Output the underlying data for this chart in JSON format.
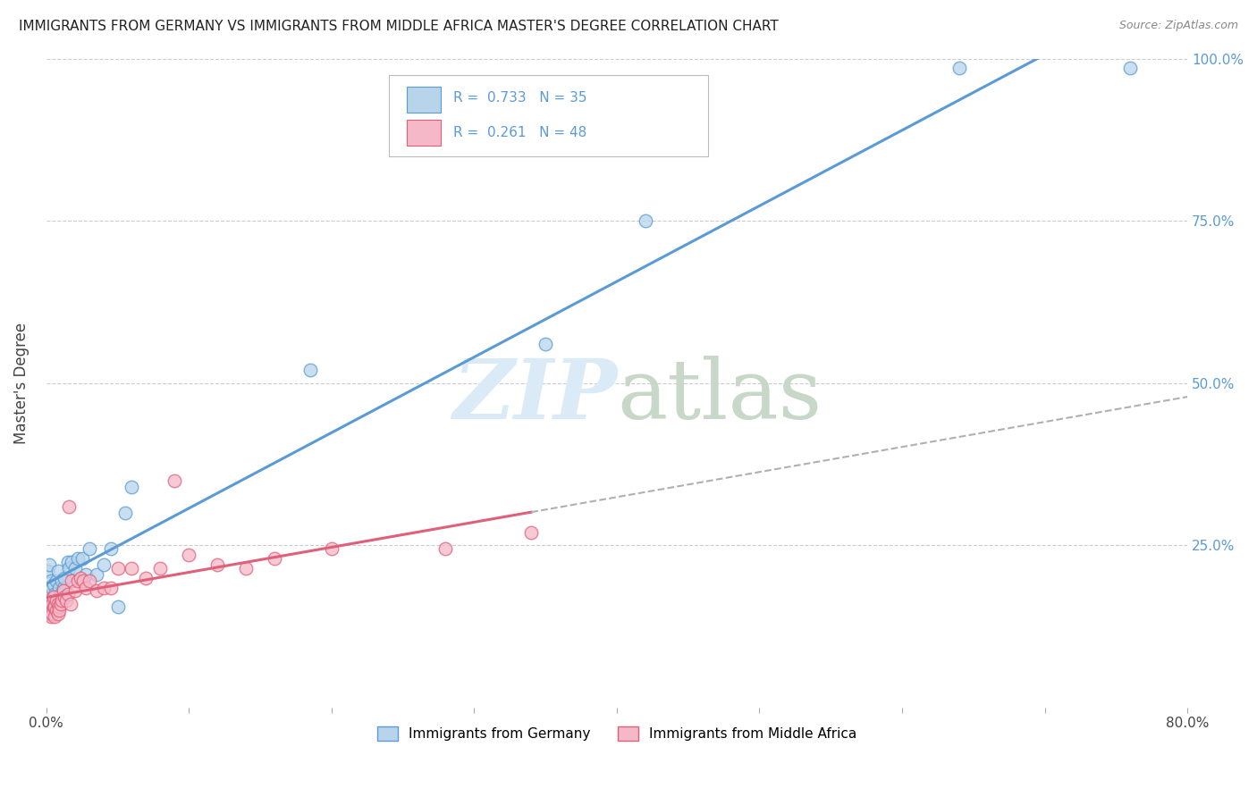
{
  "title": "IMMIGRANTS FROM GERMANY VS IMMIGRANTS FROM MIDDLE AFRICA MASTER'S DEGREE CORRELATION CHART",
  "source": "Source: ZipAtlas.com",
  "ylabel": "Master's Degree",
  "legend_label1": "Immigrants from Germany",
  "legend_label2": "Immigrants from Middle Africa",
  "R1": 0.733,
  "N1": 35,
  "R2": 0.261,
  "N2": 48,
  "xlim": [
    0.0,
    0.8
  ],
  "ylim": [
    0.0,
    1.0
  ],
  "xticks": [
    0.0,
    0.1,
    0.2,
    0.3,
    0.4,
    0.5,
    0.6,
    0.7,
    0.8
  ],
  "xticklabels": [
    "0.0%",
    "",
    "",
    "",
    "",
    "",
    "",
    "",
    "80.0%"
  ],
  "yticks": [
    0.0,
    0.25,
    0.5,
    0.75,
    1.0
  ],
  "yticklabels": [
    "",
    "25.0%",
    "50.0%",
    "75.0%",
    "100.0%"
  ],
  "color_germany": "#b8d4ea",
  "color_mid_africa": "#f5b8c8",
  "line_color_germany": "#5b9bd5",
  "line_color_mid_africa": "#e0607a",
  "watermark_color": "#daeaf7",
  "germany_x": [
    0.001,
    0.002,
    0.003,
    0.003,
    0.004,
    0.005,
    0.005,
    0.006,
    0.007,
    0.007,
    0.008,
    0.009,
    0.01,
    0.011,
    0.012,
    0.013,
    0.015,
    0.016,
    0.018,
    0.02,
    0.022,
    0.025,
    0.028,
    0.03,
    0.035,
    0.04,
    0.045,
    0.05,
    0.055,
    0.06,
    0.185,
    0.35,
    0.42,
    0.64,
    0.76
  ],
  "germany_y": [
    0.21,
    0.22,
    0.195,
    0.175,
    0.185,
    0.19,
    0.16,
    0.175,
    0.165,
    0.195,
    0.21,
    0.185,
    0.175,
    0.195,
    0.185,
    0.2,
    0.225,
    0.215,
    0.225,
    0.215,
    0.23,
    0.23,
    0.205,
    0.245,
    0.205,
    0.22,
    0.245,
    0.155,
    0.3,
    0.34,
    0.52,
    0.56,
    0.75,
    0.985,
    0.985
  ],
  "mid_africa_x": [
    0.001,
    0.001,
    0.002,
    0.002,
    0.003,
    0.003,
    0.004,
    0.004,
    0.005,
    0.005,
    0.006,
    0.006,
    0.007,
    0.007,
    0.008,
    0.008,
    0.009,
    0.009,
    0.01,
    0.011,
    0.012,
    0.013,
    0.014,
    0.015,
    0.016,
    0.017,
    0.018,
    0.02,
    0.022,
    0.024,
    0.026,
    0.028,
    0.03,
    0.035,
    0.04,
    0.045,
    0.05,
    0.06,
    0.07,
    0.08,
    0.09,
    0.1,
    0.12,
    0.14,
    0.16,
    0.2,
    0.28,
    0.34
  ],
  "mid_africa_y": [
    0.165,
    0.15,
    0.155,
    0.145,
    0.155,
    0.14,
    0.16,
    0.145,
    0.17,
    0.155,
    0.155,
    0.14,
    0.15,
    0.165,
    0.16,
    0.145,
    0.155,
    0.15,
    0.16,
    0.165,
    0.18,
    0.17,
    0.165,
    0.175,
    0.31,
    0.16,
    0.195,
    0.18,
    0.195,
    0.2,
    0.195,
    0.185,
    0.195,
    0.18,
    0.185,
    0.185,
    0.215,
    0.215,
    0.2,
    0.215,
    0.35,
    0.235,
    0.22,
    0.215,
    0.23,
    0.245,
    0.245,
    0.27
  ],
  "grid_yticks": [
    0.25,
    0.5,
    0.75,
    1.0
  ]
}
